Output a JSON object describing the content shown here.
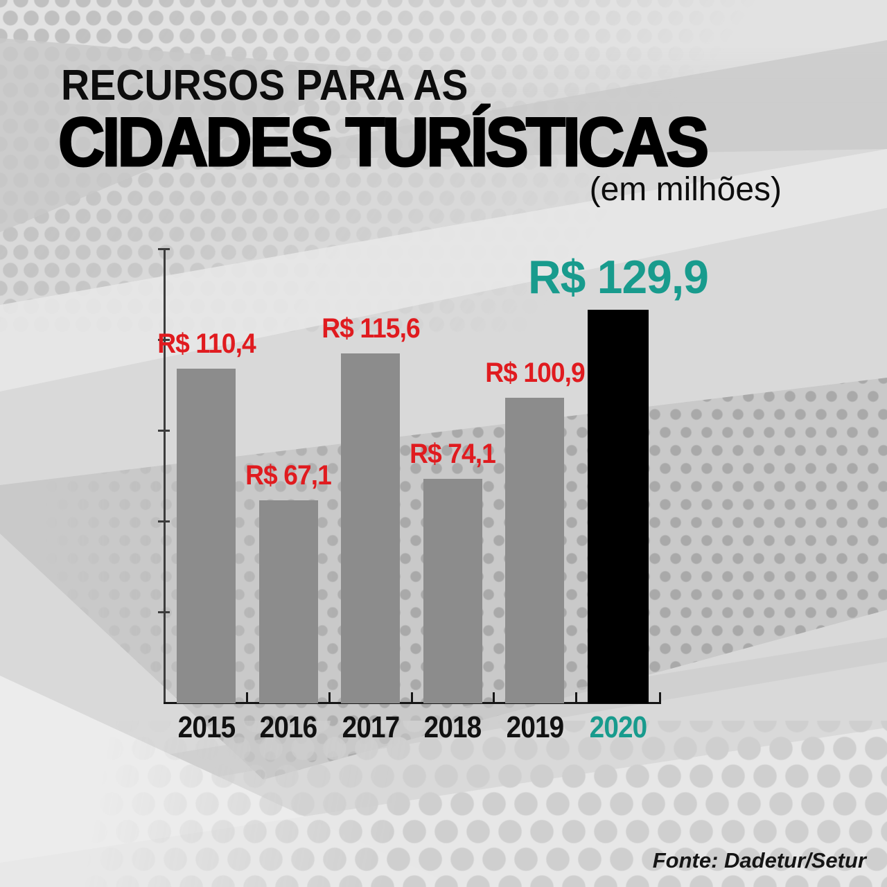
{
  "title": {
    "line1": "RECURSOS PARA AS",
    "line2": "CIDADES TURÍSTICAS",
    "subtitle": "(em milhões)"
  },
  "source": "Fonte: Dadetur/Setur",
  "colors": {
    "accent_red": "#e01b1f",
    "accent_teal": "#189b8d",
    "bar_gray": "#8c8c8c",
    "bar_highlight": "#000000",
    "axis": "#3c3c3c",
    "year_text": "#111111"
  },
  "chart_data": {
    "type": "bar",
    "categories": [
      "2015",
      "2016",
      "2017",
      "2018",
      "2019",
      "2020"
    ],
    "values": [
      110.4,
      67.1,
      115.6,
      74.1,
      100.9,
      129.9
    ],
    "value_labels": [
      "R$ 110,4",
      "R$ 67,1",
      "R$ 115,6",
      "R$ 74,1",
      "R$ 100,9",
      "R$ 129,9"
    ],
    "highlight_index": 5,
    "title": "RECURSOS PARA AS CIDADES TURÍSTICAS (em milhões)",
    "xlabel": "",
    "ylabel": "",
    "ylim": [
      0,
      150
    ],
    "y_ticks": [
      0,
      30,
      60,
      90,
      120,
      150
    ],
    "grid": false,
    "legend": false
  }
}
